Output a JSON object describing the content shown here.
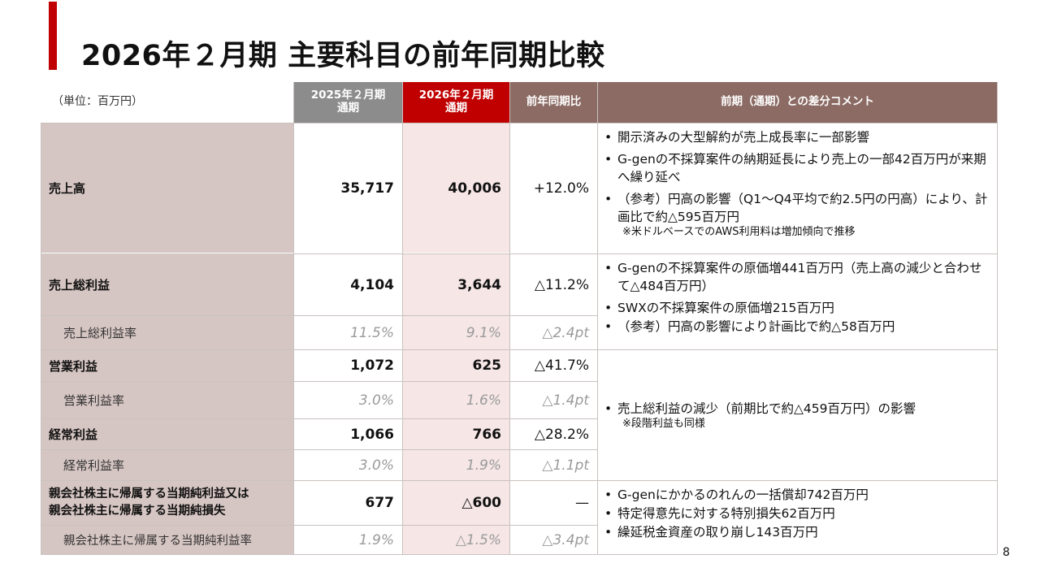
{
  "slide": {
    "title": "2026年２月期 主要科目の前年同期比較",
    "page_number": "8",
    "accent_color": "#c00000"
  },
  "table": {
    "unit_label": "（単位：百万円）",
    "headers": {
      "prev_line1": "2025年２月期",
      "prev_line2": "通期",
      "cur_line1": "2026年２月期",
      "cur_line2": "通期",
      "yoy": "前年同期比",
      "comment": "前期（通期）との差分コメント"
    },
    "rows": [
      {
        "label": "売上高",
        "prev": "35,717",
        "cur": "40,006",
        "yoy": "+12.0%"
      },
      {
        "label": "売上総利益",
        "prev": "4,104",
        "cur": "3,644",
        "yoy": "△11.2%"
      },
      {
        "label": "売上総利益率",
        "prev": "11.5%",
        "cur": "9.1%",
        "yoy": "△2.4pt"
      },
      {
        "label": "営業利益",
        "prev": "1,072",
        "cur": "625",
        "yoy": "△41.7%"
      },
      {
        "label": "営業利益率",
        "prev": "3.0%",
        "cur": "1.6%",
        "yoy": "△1.4pt"
      },
      {
        "label": "経常利益",
        "prev": "1,066",
        "cur": "766",
        "yoy": "△28.2%"
      },
      {
        "label": "経常利益率",
        "prev": "3.0%",
        "cur": "1.9%",
        "yoy": "△1.1pt"
      },
      {
        "label_line1": "親会社株主に帰属する当期純利益又は",
        "label_line2": "親会社株主に帰属する当期純損失",
        "prev": "677",
        "cur": "△600",
        "yoy": "—"
      },
      {
        "label": "親会社株主に帰属する当期純利益率",
        "prev": "1.9%",
        "cur": "△1.5%",
        "yoy": "△3.4pt"
      }
    ],
    "comments": {
      "sales": {
        "bullets": [
          "開示済みの大型解約が売上成長率に一部影響",
          "G-genの不採算案件の納期延長により売上の一部42百万円が来期へ繰り延べ",
          "（参考）円高の影響（Q1～Q4平均で約2.5円の円高）により、計画比で約△595百万円"
        ],
        "note": "※米ドルベースでのAWS利用料は増加傾向で推移"
      },
      "gross": {
        "bullets": [
          "G-genの不採算案件の原価増441百万円（売上高の減少と合わせて△484百万円）",
          "SWXの不採算案件の原価増215百万円",
          "（参考）円高の影響により計画比で約△58百万円"
        ]
      },
      "operating": {
        "bullets": [
          "売上総利益の減少（前期比で約△459百万円）の影響"
        ],
        "note": "※段階利益も同様"
      },
      "net": {
        "bullets": [
          "G-genにかかるのれんの一括償却742百万円",
          "特定得意先に対する特別損失62百万円",
          "繰延税金資産の取り崩し143百万円"
        ]
      }
    }
  }
}
